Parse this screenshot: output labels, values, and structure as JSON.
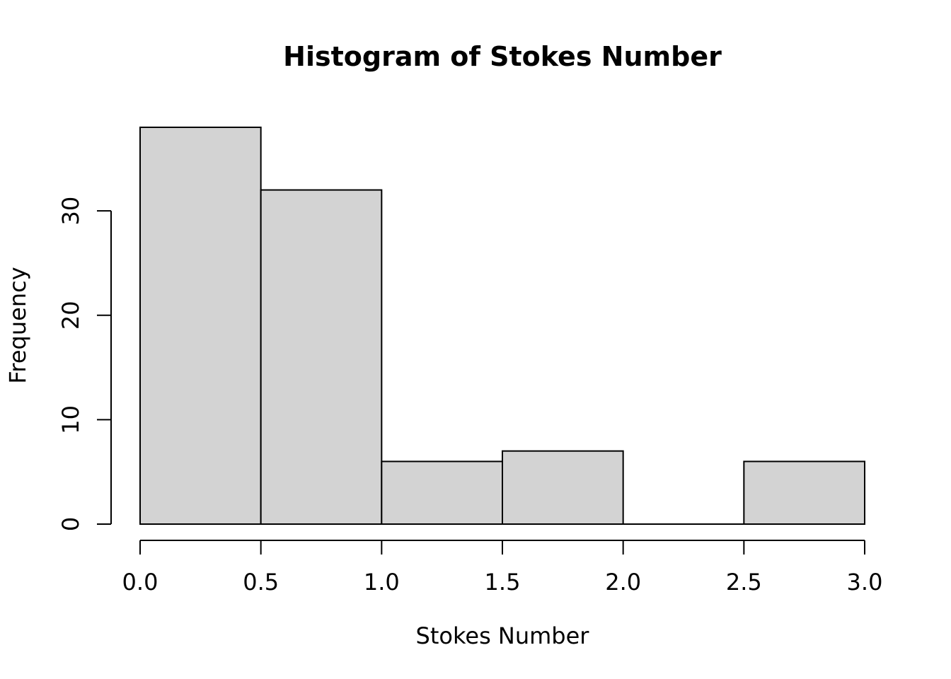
{
  "chart_data": {
    "type": "bar",
    "title": "Histogram of Stokes Number",
    "xlabel": "Stokes Number",
    "ylabel": "Frequency",
    "bins": [
      {
        "start": 0.0,
        "end": 0.5,
        "count": 38
      },
      {
        "start": 0.5,
        "end": 1.0,
        "count": 32
      },
      {
        "start": 1.0,
        "end": 1.5,
        "count": 6
      },
      {
        "start": 1.5,
        "end": 2.0,
        "count": 7
      },
      {
        "start": 2.0,
        "end": 2.5,
        "count": 0
      },
      {
        "start": 2.5,
        "end": 3.0,
        "count": 6
      }
    ],
    "x_ticks": [
      0.0,
      0.5,
      1.0,
      1.5,
      2.0,
      2.5,
      3.0
    ],
    "x_tick_labels": [
      "0.0",
      "0.5",
      "1.0",
      "1.5",
      "2.0",
      "2.5",
      "3.0"
    ],
    "y_ticks": [
      0,
      10,
      20,
      30
    ],
    "y_tick_labels": [
      "0",
      "10",
      "20",
      "30"
    ],
    "xlim": [
      0,
      3
    ],
    "ylim": [
      0,
      38
    ],
    "grid": false,
    "legend": "none",
    "bar_color": "#d3d3d3",
    "edge_color": "#000000"
  }
}
